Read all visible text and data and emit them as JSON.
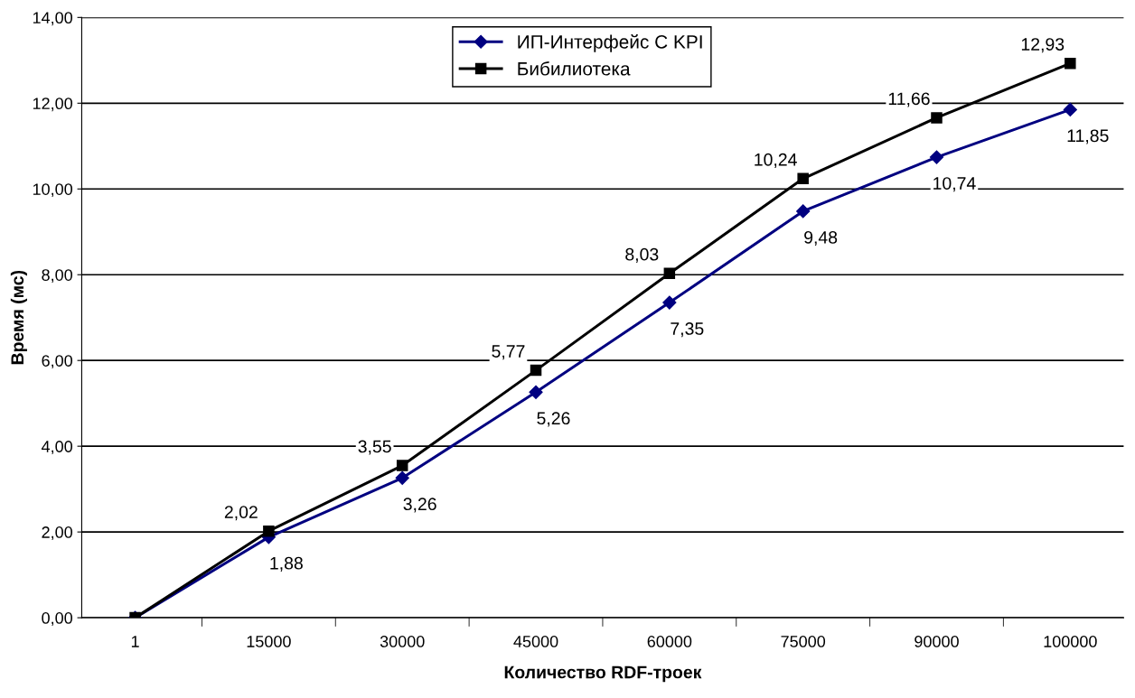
{
  "chart_data": {
    "type": "line",
    "xlabel": "Количество RDF-троек",
    "ylabel": "Время (мс)",
    "categories": [
      "1",
      "15000",
      "30000",
      "45000",
      "60000",
      "75000",
      "90000",
      "100000"
    ],
    "series": [
      {
        "name": "ИП-Интерфейс C KPI",
        "color": "#000080",
        "marker": "diamond",
        "values": [
          0,
          1.88,
          3.26,
          5.26,
          7.35,
          9.48,
          10.74,
          11.85
        ],
        "value_labels": [
          null,
          "1,88",
          "3,26",
          "5,26",
          "7,35",
          "9,48",
          "10,74",
          "11,85"
        ]
      },
      {
        "name": "Бибилиотека",
        "color": "#000000",
        "marker": "square",
        "values": [
          0,
          2.02,
          3.55,
          5.77,
          8.03,
          10.24,
          11.66,
          12.93
        ],
        "value_labels": [
          null,
          "2,02",
          "3,55",
          "5,77",
          "8,03",
          "10,24",
          "11,66",
          "12,93"
        ]
      }
    ],
    "ylim": [
      0,
      14
    ],
    "yticks": [
      {
        "value": 0,
        "label": "0,00"
      },
      {
        "value": 2,
        "label": "2,00"
      },
      {
        "value": 4,
        "label": "4,00"
      },
      {
        "value": 6,
        "label": "6,00"
      },
      {
        "value": 8,
        "label": "8,00"
      },
      {
        "value": 10,
        "label": "10,00"
      },
      {
        "value": 12,
        "label": "12,00"
      },
      {
        "value": 14,
        "label": "14,00"
      }
    ],
    "grid": "y",
    "legend": "top"
  }
}
